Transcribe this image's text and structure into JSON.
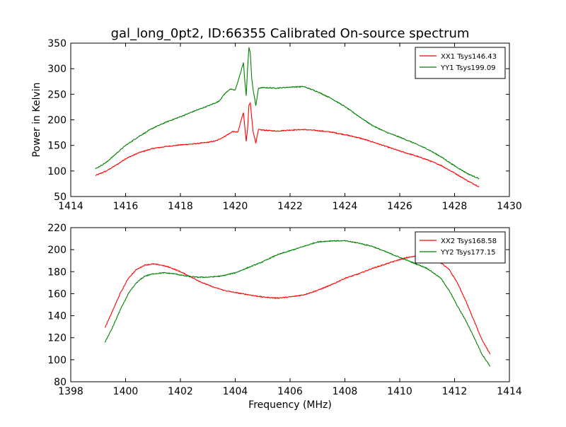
{
  "figure": {
    "title": "gal_long_0pt2, ID:66355 Calibrated On-source spectrum"
  },
  "chart_data": [
    {
      "type": "line",
      "title": "gal_long_0pt2, ID:66355 Calibrated On-source spectrum",
      "xlabel": "",
      "ylabel": "Power in Kelvin",
      "xlim": [
        1414,
        1430
      ],
      "ylim": [
        50,
        350
      ],
      "xticks": [
        1414,
        1416,
        1418,
        1420,
        1422,
        1424,
        1426,
        1428,
        1430
      ],
      "yticks": [
        50,
        100,
        150,
        200,
        250,
        300,
        350
      ],
      "grid": false,
      "legend_position": "top-right",
      "colors": {
        "XX1": "#ff0000",
        "YY1": "#008000"
      },
      "series": [
        {
          "name": "XX1 Tsys146.43",
          "color": "#ff0000",
          "points": [
            [
              1414.9,
              91
            ],
            [
              1415.3,
              100
            ],
            [
              1415.7,
              113
            ],
            [
              1416.0,
              124
            ],
            [
              1416.5,
              136
            ],
            [
              1417.0,
              144
            ],
            [
              1417.5,
              148
            ],
            [
              1418.0,
              151
            ],
            [
              1418.5,
              153
            ],
            [
              1419.0,
              156
            ],
            [
              1419.3,
              159
            ],
            [
              1419.6,
              167
            ],
            [
              1419.9,
              177
            ],
            [
              1420.1,
              176
            ],
            [
              1420.25,
              206
            ],
            [
              1420.3,
              214
            ],
            [
              1420.35,
              185
            ],
            [
              1420.4,
              158
            ],
            [
              1420.45,
              182
            ],
            [
              1420.5,
              229
            ],
            [
              1420.55,
              233
            ],
            [
              1420.6,
              205
            ],
            [
              1420.65,
              178
            ],
            [
              1420.75,
              155
            ],
            [
              1420.85,
              181
            ],
            [
              1421.0,
              180
            ],
            [
              1421.5,
              178
            ],
            [
              1422.0,
              180
            ],
            [
              1422.5,
              181
            ],
            [
              1423.0,
              179
            ],
            [
              1423.5,
              176
            ],
            [
              1424.0,
              171
            ],
            [
              1424.5,
              165
            ],
            [
              1425.0,
              157
            ],
            [
              1425.5,
              148
            ],
            [
              1426.0,
              139
            ],
            [
              1426.5,
              131
            ],
            [
              1427.0,
              122
            ],
            [
              1427.5,
              111
            ],
            [
              1428.0,
              96
            ],
            [
              1428.5,
              80
            ],
            [
              1428.9,
              69
            ]
          ]
        },
        {
          "name": "YY1 Tsys199.09",
          "color": "#008000",
          "points": [
            [
              1414.9,
              104
            ],
            [
              1415.3,
              117
            ],
            [
              1415.7,
              136
            ],
            [
              1416.0,
              150
            ],
            [
              1416.5,
              168
            ],
            [
              1417.0,
              184
            ],
            [
              1417.5,
              196
            ],
            [
              1418.0,
              206
            ],
            [
              1418.5,
              217
            ],
            [
              1419.0,
              227
            ],
            [
              1419.4,
              236
            ],
            [
              1419.6,
              250
            ],
            [
              1419.8,
              260
            ],
            [
              1420.0,
              258
            ],
            [
              1420.2,
              293
            ],
            [
              1420.3,
              312
            ],
            [
              1420.35,
              275
            ],
            [
              1420.4,
              247
            ],
            [
              1420.45,
              300
            ],
            [
              1420.5,
              342
            ],
            [
              1420.55,
              330
            ],
            [
              1420.6,
              282
            ],
            [
              1420.65,
              260
            ],
            [
              1420.75,
              228
            ],
            [
              1420.85,
              262
            ],
            [
              1421.0,
              263
            ],
            [
              1421.5,
              262
            ],
            [
              1422.0,
              264
            ],
            [
              1422.5,
              265
            ],
            [
              1423.0,
              255
            ],
            [
              1423.5,
              242
            ],
            [
              1424.0,
              226
            ],
            [
              1424.5,
              207
            ],
            [
              1425.0,
              189
            ],
            [
              1425.5,
              176
            ],
            [
              1426.0,
              166
            ],
            [
              1426.5,
              155
            ],
            [
              1427.0,
              143
            ],
            [
              1427.5,
              128
            ],
            [
              1428.0,
              110
            ],
            [
              1428.5,
              94
            ],
            [
              1428.9,
              85
            ]
          ]
        }
      ]
    },
    {
      "type": "line",
      "title": "",
      "xlabel": "Frequency (MHz)",
      "ylabel": "",
      "xlim": [
        1398,
        1414
      ],
      "ylim": [
        80,
        220
      ],
      "xticks": [
        1398,
        1400,
        1402,
        1404,
        1406,
        1408,
        1410,
        1412,
        1414
      ],
      "yticks": [
        80,
        100,
        120,
        140,
        160,
        180,
        200,
        220
      ],
      "grid": false,
      "legend_position": "top-right",
      "colors": {
        "XX2": "#ff0000",
        "YY2": "#008000"
      },
      "series": [
        {
          "name": "XX2 Tsys168.58",
          "color": "#ff0000",
          "points": [
            [
              1399.25,
              129
            ],
            [
              1399.5,
              143
            ],
            [
              1399.8,
              160
            ],
            [
              1400.1,
              174
            ],
            [
              1400.4,
              182
            ],
            [
              1400.7,
              186
            ],
            [
              1401.0,
              187
            ],
            [
              1401.3,
              186
            ],
            [
              1401.6,
              184
            ],
            [
              1402.0,
              180
            ],
            [
              1402.4,
              175
            ],
            [
              1402.8,
              170
            ],
            [
              1403.2,
              166
            ],
            [
              1403.6,
              163
            ],
            [
              1404.0,
              161
            ],
            [
              1404.5,
              159
            ],
            [
              1405.0,
              157
            ],
            [
              1405.5,
              156
            ],
            [
              1406.0,
              157
            ],
            [
              1406.5,
              159
            ],
            [
              1407.0,
              163
            ],
            [
              1407.5,
              168
            ],
            [
              1408.0,
              174
            ],
            [
              1408.5,
              178
            ],
            [
              1409.0,
              183
            ],
            [
              1409.5,
              187
            ],
            [
              1410.0,
              191
            ],
            [
              1410.3,
              193
            ],
            [
              1410.6,
              194
            ],
            [
              1410.9,
              194
            ],
            [
              1411.2,
              192
            ],
            [
              1411.5,
              188
            ],
            [
              1411.8,
              182
            ],
            [
              1412.1,
              170
            ],
            [
              1412.4,
              154
            ],
            [
              1412.7,
              136
            ],
            [
              1413.0,
              118
            ],
            [
              1413.3,
              105
            ]
          ]
        },
        {
          "name": "YY2 Tsys177.15",
          "color": "#008000",
          "points": [
            [
              1399.25,
              116
            ],
            [
              1399.5,
              128
            ],
            [
              1399.8,
              145
            ],
            [
              1400.1,
              160
            ],
            [
              1400.4,
              170
            ],
            [
              1400.7,
              176
            ],
            [
              1401.0,
              178
            ],
            [
              1401.4,
              179
            ],
            [
              1401.8,
              178
            ],
            [
              1402.2,
              176
            ],
            [
              1402.6,
              175
            ],
            [
              1403.0,
              175
            ],
            [
              1403.5,
              176
            ],
            [
              1404.0,
              179
            ],
            [
              1404.5,
              184
            ],
            [
              1405.0,
              189
            ],
            [
              1405.5,
              195
            ],
            [
              1406.0,
              199
            ],
            [
              1406.5,
              203
            ],
            [
              1407.0,
              207
            ],
            [
              1407.5,
              208
            ],
            [
              1408.0,
              208
            ],
            [
              1408.5,
              206
            ],
            [
              1409.0,
              203
            ],
            [
              1409.5,
              198
            ],
            [
              1410.0,
              193
            ],
            [
              1410.5,
              188
            ],
            [
              1411.0,
              183
            ],
            [
              1411.5,
              174
            ],
            [
              1411.8,
              163
            ],
            [
              1412.1,
              149
            ],
            [
              1412.4,
              136
            ],
            [
              1412.7,
              121
            ],
            [
              1413.0,
              105
            ],
            [
              1413.3,
              94
            ]
          ]
        }
      ]
    }
  ]
}
